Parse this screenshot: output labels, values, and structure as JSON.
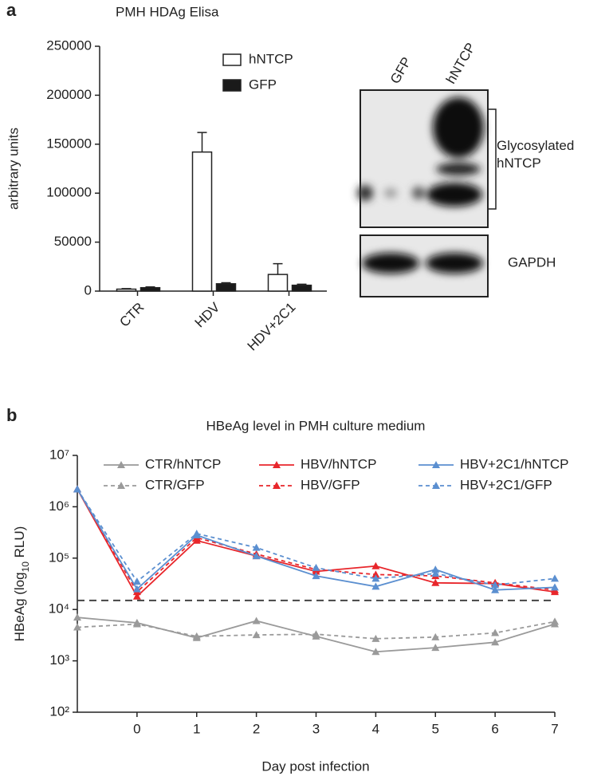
{
  "panel_labels": [
    "a",
    "b"
  ],
  "blot": {
    "lanes": [
      "GFP",
      "hNTCP"
    ],
    "bands": [
      "Glycosylated hNTCP",
      "GAPDH"
    ]
  },
  "chart_data": [
    {
      "type": "bar",
      "title": "PMH HDAg Elisa",
      "y_label": "arbitrary units",
      "categories": [
        "CTR",
        "HDV",
        "HDV+2C1"
      ],
      "series": [
        {
          "name": "hNTCP",
          "color": "#ffffff",
          "values": [
            2000,
            142000,
            17000
          ],
          "errors": [
            500,
            20000,
            11000
          ]
        },
        {
          "name": "GFP",
          "color": "#1a1a1a",
          "values": [
            3500,
            7500,
            6000
          ],
          "errors": [
            800,
            1000,
            1000
          ]
        }
      ],
      "ylim": [
        0,
        250000
      ],
      "yticks": [
        0,
        50000,
        100000,
        150000,
        200000,
        250000
      ]
    },
    {
      "type": "line",
      "title": "HBeAg level in PMH culture medium",
      "x_label": "Day post infection",
      "y_label": [
        "HBeAg (log",
        "10",
        " RLU)"
      ],
      "x": [
        -1,
        0,
        1,
        2,
        3,
        4,
        5,
        6,
        7
      ],
      "series": [
        {
          "name": "CTR/hNTCP",
          "color": "#9a9a9a",
          "dash": "solid",
          "values": [
            7000,
            5500,
            2800,
            6000,
            3000,
            1500,
            1800,
            2300,
            5200
          ]
        },
        {
          "name": "CTR/GFP",
          "color": "#9a9a9a",
          "dash": "dashed",
          "values": [
            4500,
            5200,
            3000,
            3200,
            3300,
            2700,
            2900,
            3500,
            5800
          ]
        },
        {
          "name": "HBV/hNTCP",
          "color": "#e8262b",
          "dash": "solid",
          "values": [
            2200000,
            18000,
            220000,
            110000,
            55000,
            70000,
            33000,
            32000,
            22000
          ]
        },
        {
          "name": "HBV/GFP",
          "color": "#e8262b",
          "dash": "dashed",
          "values": [
            2200000,
            22000,
            250000,
            120000,
            60000,
            48000,
            45000,
            33000,
            24000
          ]
        },
        {
          "name": "HBV+2C1/hNTCP",
          "color": "#5b8fd0",
          "dash": "solid",
          "values": [
            2200000,
            25000,
            280000,
            110000,
            45000,
            28000,
            60000,
            24000,
            27000
          ]
        },
        {
          "name": "HBV+2C1/GFP",
          "color": "#5b8fd0",
          "dash": "dashed",
          "values": [
            2200000,
            35000,
            300000,
            160000,
            65000,
            40000,
            50000,
            30000,
            40000
          ]
        }
      ],
      "xlim": [
        -1,
        7
      ],
      "xticks": [
        0,
        1,
        2,
        3,
        4,
        5,
        6,
        7
      ],
      "ylim": [
        100,
        10000000
      ],
      "log_scale": true,
      "yticks": [
        {
          "value": 100,
          "label": "10²"
        },
        {
          "value": 1000,
          "label": "10³"
        },
        {
          "value": 10000,
          "label": "10⁴"
        },
        {
          "value": 100000,
          "label": "10⁵"
        },
        {
          "value": 1000000,
          "label": "10⁶"
        },
        {
          "value": 10000000,
          "label": "10⁷"
        }
      ],
      "threshold": 15000
    }
  ]
}
